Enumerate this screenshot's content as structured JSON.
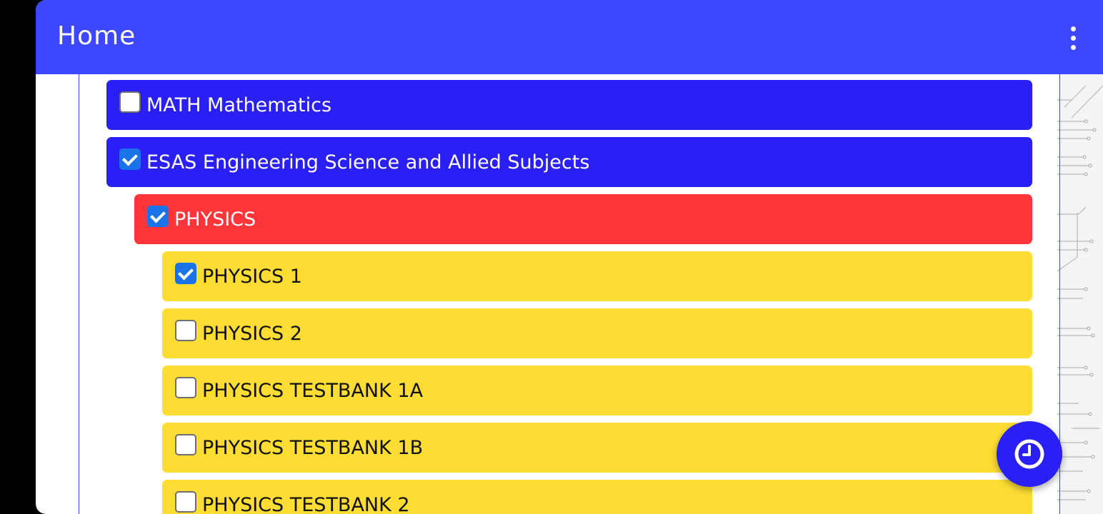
{
  "app_bar": {
    "title": "Home",
    "menu_icon": "more-vert-icon"
  },
  "subjects": [
    {
      "label": "MATH Mathematics",
      "checked": false,
      "color": "#2a1ff5",
      "level": 0
    },
    {
      "label": "ESAS Engineering Science and Allied Subjects",
      "checked": true,
      "color": "#2a1ff5",
      "level": 0
    },
    {
      "label": "PHYSICS",
      "checked": true,
      "color": "#ff3539",
      "level": 1
    },
    {
      "label": "PHYSICS 1",
      "checked": true,
      "color": "#fddd33",
      "level": 2
    },
    {
      "label": "PHYSICS 2",
      "checked": false,
      "color": "#fddd33",
      "level": 2
    },
    {
      "label": "PHYSICS TESTBANK 1A",
      "checked": false,
      "color": "#fddd33",
      "level": 2
    },
    {
      "label": "PHYSICS TESTBANK 1B",
      "checked": false,
      "color": "#fddd33",
      "level": 2
    },
    {
      "label": "PHYSICS TESTBANK 2",
      "checked": false,
      "color": "#fddd33",
      "level": 2
    }
  ],
  "fab": {
    "icon": "clock-icon"
  },
  "colors": {
    "app_bar": "#3d47ff",
    "primary_row": "#2a1ff5",
    "topic_row": "#ff3539",
    "subtopic_row": "#fddd33",
    "checkbox_checked": "#1a73e8"
  }
}
